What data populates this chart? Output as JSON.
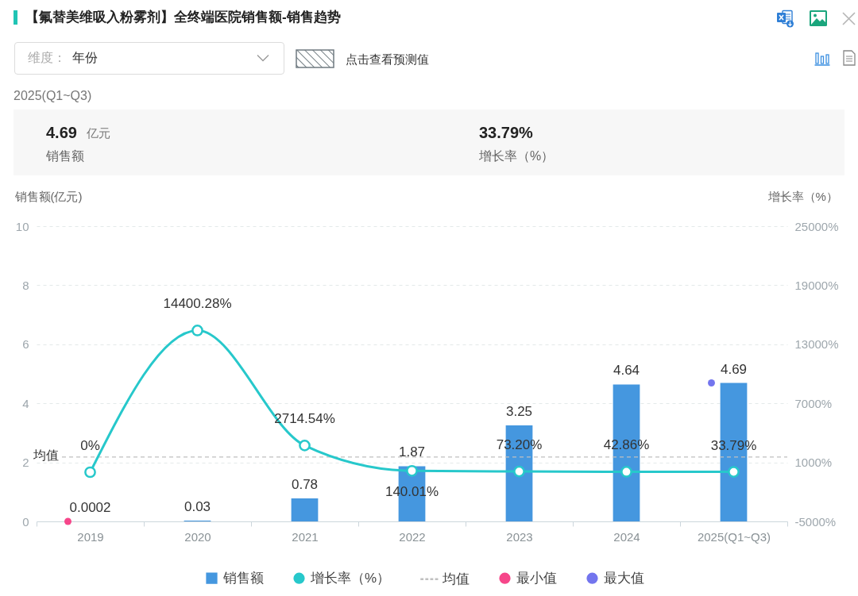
{
  "chart_data": {
    "type": "bar",
    "title": "【氟替美维吸入粉雾剂】全终端医院销售额-销售趋势",
    "ylabel": "销售额(亿元)",
    "y2label": "增长率（%）",
    "categories": [
      "2019",
      "2020",
      "2021",
      "2022",
      "2023",
      "2024",
      "2025(Q1~Q3)"
    ],
    "series": [
      {
        "name": "销售额",
        "color": "#4597df",
        "values": [
          0.0002,
          0.03,
          0.78,
          1.87,
          3.25,
          4.64,
          4.69
        ],
        "value_labels": [
          "0.0002",
          "0.03",
          "0.78",
          "1.87",
          "3.25",
          "4.64",
          "4.69"
        ]
      },
      {
        "name": "增长率（%）",
        "type": "line",
        "axis": "y2",
        "color": "#27c8cb",
        "values": [
          0,
          14400.28,
          2714.54,
          140.01,
          73.2,
          42.86,
          33.79
        ],
        "value_labels": [
          "0%",
          "14400.28%",
          "2714.54%",
          "140.01%",
          "73.20%",
          "42.86%",
          "33.79%"
        ]
      },
      {
        "name": "最小值",
        "type": "scatter",
        "color": "#f6468a",
        "values": [
          0,
          null,
          null,
          null,
          null,
          null,
          null
        ]
      },
      {
        "name": "最大值",
        "type": "scatter",
        "color": "#7375ee",
        "values": [
          null,
          null,
          null,
          null,
          null,
          null,
          4.69
        ]
      }
    ],
    "ylim": [
      0,
      10
    ],
    "yticks": [
      0,
      2,
      4,
      6,
      8,
      10
    ],
    "y2lim": [
      -5000,
      25000
    ],
    "y2ticks": [
      {
        "value": -5000,
        "label": "-5000%"
      },
      {
        "value": 1000,
        "label": "1000%"
      },
      {
        "value": 7000,
        "label": "7000%"
      },
      {
        "value": 13000,
        "label": "13000%"
      },
      {
        "value": 19000,
        "label": "19000%"
      },
      {
        "value": 25000,
        "label": "25000%"
      }
    ],
    "ref_lines": [
      {
        "axis": "y",
        "value": 2.18,
        "label": "均值",
        "color": "#c0c0c0",
        "line_style": "dashed"
      }
    ],
    "grid": "y",
    "legend": "bottom",
    "marker": "circle",
    "annotations": [
      "维度：",
      "年份",
      "点击查看预测值",
      "2025(Q1~Q3)",
      "4.69",
      "亿元",
      "销售额",
      "33.79%",
      "增长率（%）"
    ]
  }
}
